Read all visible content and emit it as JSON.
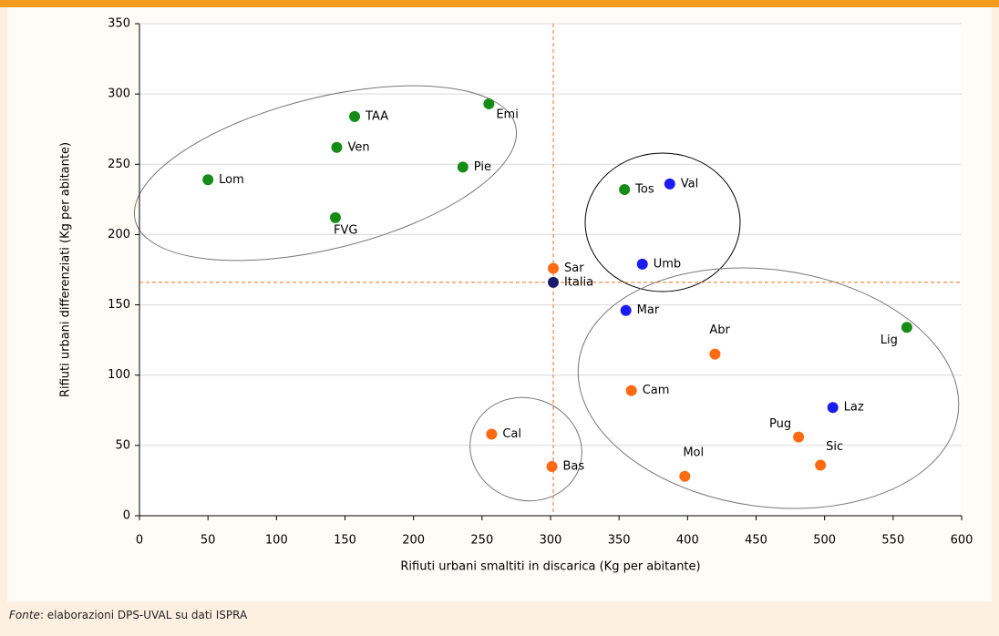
{
  "chart_data": {
    "type": "scatter",
    "xlabel": "Rifiuti urbani smaltiti in discarica (Kg per abitante)",
    "ylabel": "Rifiuti urbani differenziati (Kg per abitante)",
    "xlim": [
      0,
      600
    ],
    "xticks": [
      0,
      50,
      100,
      150,
      200,
      250,
      300,
      350,
      400,
      450,
      500,
      550,
      600
    ],
    "ylim": [
      0,
      350
    ],
    "yticks": [
      0,
      50,
      100,
      150,
      200,
      250,
      300,
      350
    ],
    "grid": true,
    "reference": {
      "x": 302,
      "y": 166
    },
    "labels": [
      "Lom",
      "TAA",
      "Ven",
      "FVG",
      "Pie",
      "Emi",
      "Tos",
      "Val",
      "Umb",
      "Sar",
      "Italia",
      "Mar",
      "Lig",
      "Abr",
      "Cam",
      "Laz",
      "Pug",
      "Sic",
      "Mol",
      "Cal",
      "Bas"
    ],
    "x": [
      50,
      157,
      144,
      143,
      236,
      255,
      354,
      387,
      367,
      302,
      302,
      355,
      560,
      420,
      359,
      506,
      481,
      497,
      398,
      257,
      301
    ],
    "y": [
      239,
      284,
      262,
      212,
      248,
      293,
      232,
      236,
      179,
      176,
      166,
      146,
      134,
      115,
      89,
      77,
      56,
      36,
      28,
      58,
      35
    ],
    "colors": [
      "#168c16",
      "#168c16",
      "#168c16",
      "#168c16",
      "#168c16",
      "#168c16",
      "#168c16",
      "#1c1cf2",
      "#1c1cf2",
      "#ff6a13",
      "#1b1b6b",
      "#1c1cf2",
      "#168c16",
      "#ff6a13",
      "#ff6a13",
      "#1c1cf2",
      "#ff6a13",
      "#ff6a13",
      "#ff6a13",
      "#ff6a13",
      "#ff6a13"
    ]
  },
  "footer": {
    "source_label": "Fonte",
    "source_text": ": elaborazioni DPS-UVAL su dati ISPRA"
  }
}
